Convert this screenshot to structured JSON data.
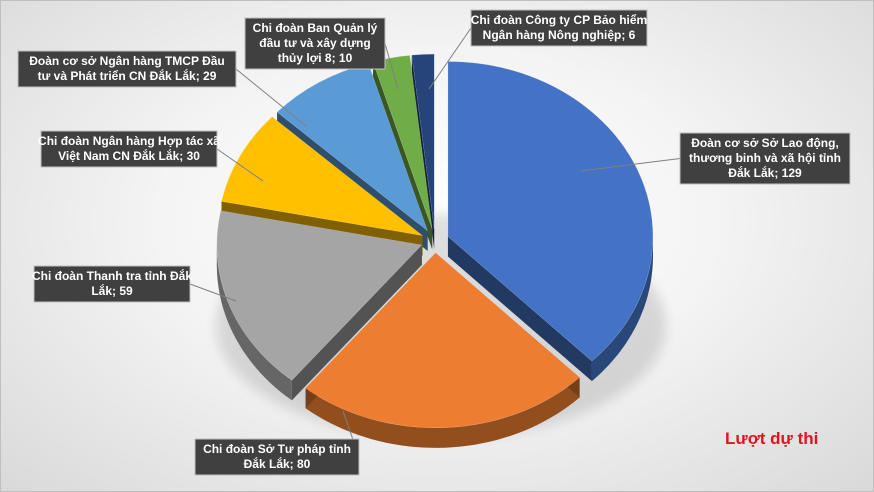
{
  "chart_data": {
    "type": "pie",
    "title": "",
    "side_title": "Lượt dự thi",
    "label_format": "{category}; {value}",
    "categories": [
      "Đoàn cơ sở Sở Lao động, thương binh và xã hội tỉnh Đắk Lắk",
      "Chi đoàn Sở Tư pháp tỉnh Đắk Lắk",
      "Chi đoàn Thanh tra tỉnh Đắk Lắk",
      "Chi đoàn Ngân hàng Hợp tác xã Việt Nam CN Đắk Lắk",
      "Đoàn cơ sở Ngân hàng TMCP Đầu tư và Phát triển CN Đắk Lắk",
      "Chi đoàn Ban Quản lý đầu tư và xây dựng thủy lợi 8",
      "Chi đoàn Công ty CP Bảo hiểm Ngân hàng Nông nghiệp"
    ],
    "values": [
      129,
      80,
      59,
      30,
      29,
      10,
      6
    ],
    "colors": [
      "#4472c4",
      "#ed7d31",
      "#a5a5a5",
      "#ffc000",
      "#5b9bd5",
      "#70ad47",
      "#264478"
    ],
    "labels": [
      [
        "Đoàn cơ sở Sở Lao động,",
        "thương binh và xã hội tỉnh",
        "Đắk Lắk; 129"
      ],
      [
        "Chi đoàn Sở Tư pháp tỉnh",
        "Đắk Lắk; 80"
      ],
      [
        "Chi đoàn Thanh tra tỉnh Đắk",
        "Lắk; 59"
      ],
      [
        "Chi đoàn Ngân hàng Hợp tác xã",
        "Việt Nam CN Đắk Lắk; 30"
      ],
      [
        "Đoàn cơ sở Ngân hàng TMCP Đầu",
        "tư và Phát triển CN Đắk Lắk; 29"
      ],
      [
        "Chi đoàn Ban Quản lý",
        "đầu tư và xây dựng",
        "thủy lợi 8; 10"
      ],
      [
        "Chi đoàn Công ty CP Bảo hiểm",
        "Ngân hàng Nông nghiệp; 6"
      ]
    ],
    "exploded": true,
    "legend": "none"
  }
}
